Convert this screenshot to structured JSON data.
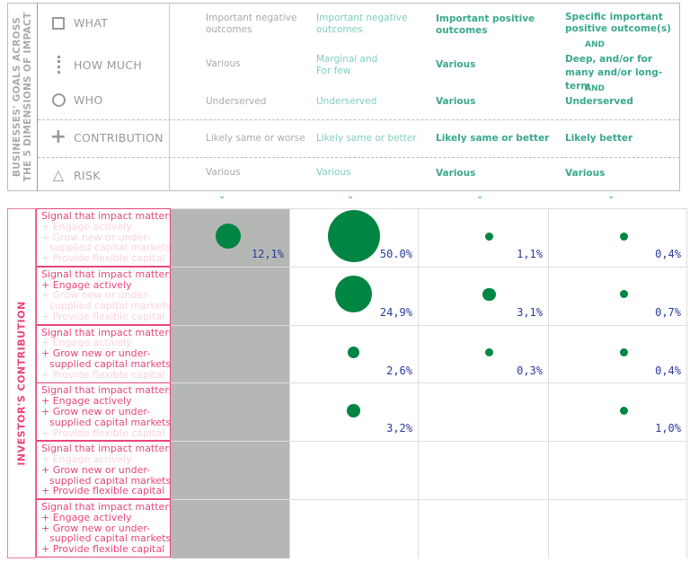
{
  "top": {
    "side_label_line1": "BUSINESSES' GOALS ACROSS",
    "side_label_line2": "THE 5 DIMENSIONS OF IMPACT",
    "dimensions": [
      {
        "label": "WHAT",
        "icon": "square-icon"
      },
      {
        "label": "HOW MUCH",
        "icon": "dotted-line-icon"
      },
      {
        "label": "WHO",
        "icon": "circle-icon"
      },
      {
        "label": "CONTRIBUTION",
        "icon": "plus-icon"
      },
      {
        "label": "RISK",
        "icon": "triangle-icon"
      }
    ],
    "columns": [
      {
        "what": "Important negative outcomes",
        "how_much": "Various",
        "who": "Underserved",
        "contribution": "Likely same or worse",
        "risk": "Various"
      },
      {
        "what": "Important negative outcomes",
        "how_much": "Marginal and For few",
        "who": "Underserved",
        "contribution": "Likely same or better",
        "risk": "Various"
      },
      {
        "what": "Important positive outcomes",
        "how_much": "Various",
        "who": "Various",
        "contribution": "Likely same or better",
        "risk": "Various"
      },
      {
        "what": "Specific important positive outcome(s)",
        "and1": "AND",
        "how_much": "Deep, and/or for many and/or long-term",
        "and2": "AND",
        "who": "Underserved",
        "contribution": "Likely better",
        "risk": "Various"
      }
    ]
  },
  "colors": {
    "bubble": "#008542",
    "value_text": "#2a3a9a",
    "pink": "#e8467f",
    "teal": "#3aa88e",
    "gray_column": "#b5b7b5"
  },
  "chart_data": {
    "type": "scatter",
    "y_axis_label": "INVESTOR'S CONTRIBUTION",
    "row_label_lines": [
      "Signal that impact matters",
      "+ Engage actively",
      "+ Grow new or under-",
      "supplied capital markets",
      "+ Provide flexible capital"
    ],
    "rows": [
      {
        "active": [
          true,
          false,
          false,
          false
        ],
        "values": [
          12.1,
          50.0,
          1.1,
          0.4
        ],
        "labels": [
          "12,1%",
          "50.0%",
          "1,1%",
          "0,4%"
        ]
      },
      {
        "active": [
          true,
          true,
          false,
          false
        ],
        "values": [
          null,
          24.9,
          3.1,
          0.7
        ],
        "labels": [
          "",
          "24,9%",
          "3,1%",
          "0,7%"
        ]
      },
      {
        "active": [
          true,
          false,
          true,
          false
        ],
        "values": [
          null,
          2.6,
          0.3,
          0.4
        ],
        "labels": [
          "",
          "2,6%",
          "0,3%",
          "0,4%"
        ]
      },
      {
        "active": [
          true,
          true,
          true,
          false
        ],
        "values": [
          null,
          3.2,
          null,
          1.0
        ],
        "labels": [
          "",
          "3,2%",
          "",
          "1,0%"
        ]
      },
      {
        "active": [
          true,
          false,
          true,
          true
        ],
        "values": [
          null,
          null,
          null,
          null
        ],
        "labels": [
          "",
          "",
          "",
          ""
        ]
      },
      {
        "active": [
          true,
          true,
          true,
          true
        ],
        "values": [
          null,
          null,
          null,
          null
        ],
        "labels": [
          "",
          "",
          "",
          ""
        ]
      }
    ]
  }
}
